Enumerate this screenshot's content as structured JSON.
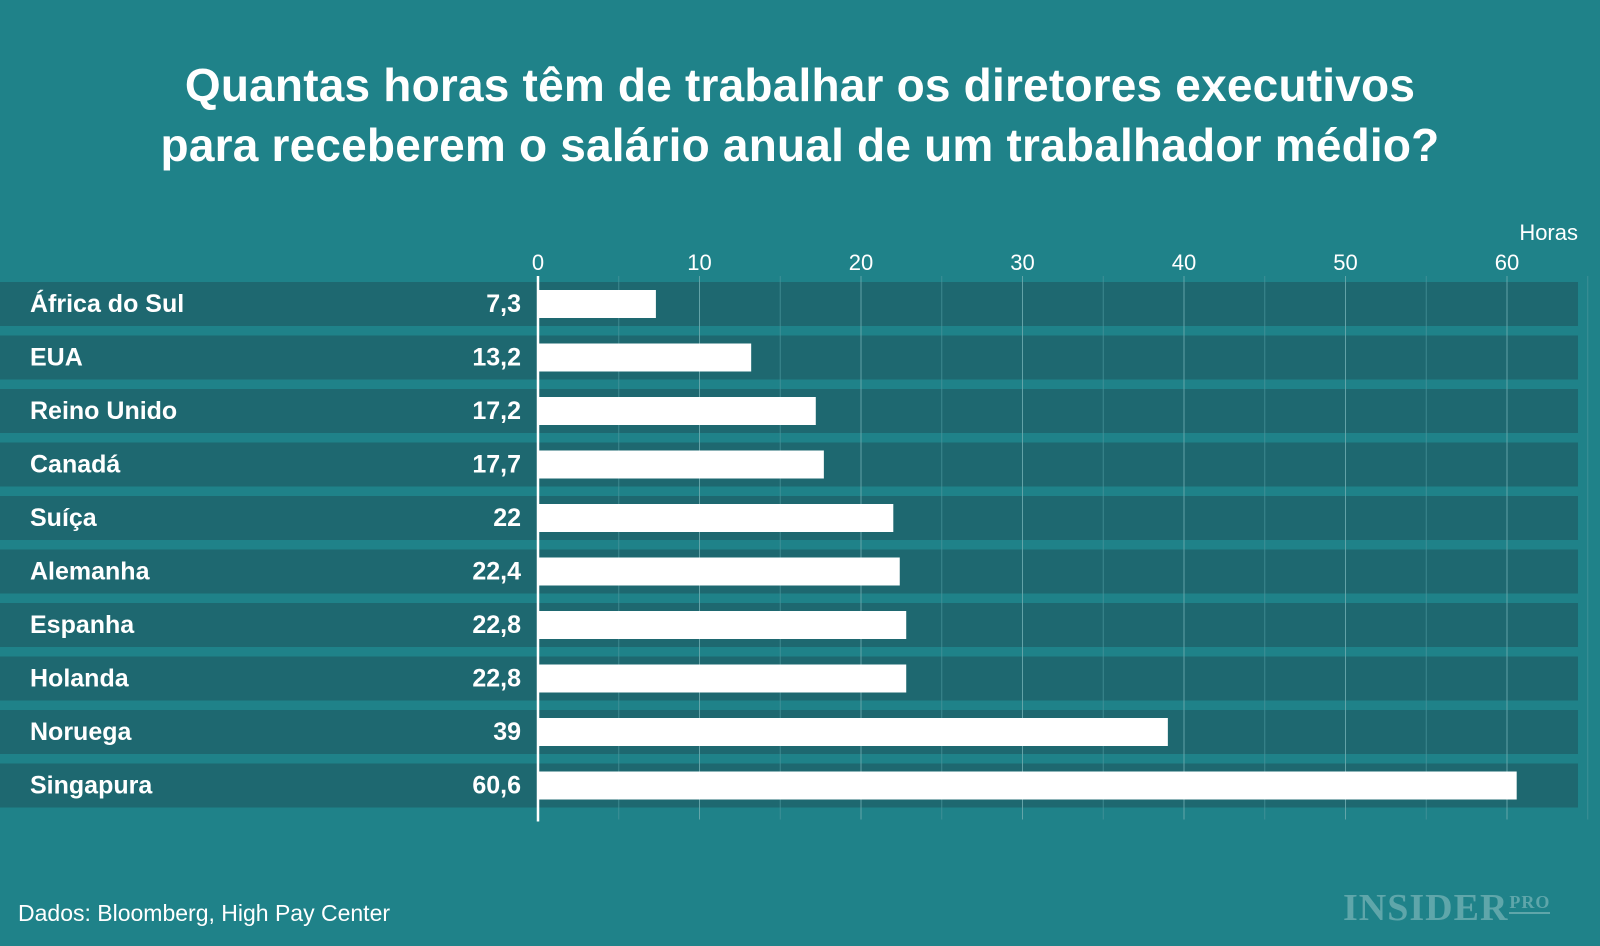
{
  "chart_data": {
    "type": "bar",
    "orientation": "horizontal",
    "title": "Quantas horas têm de trabalhar os diretores executivos para receberem o salário anual de um trabalhador médio?",
    "title_lines": [
      "Quantas horas têm de trabalhar os diretores executivos",
      "para receberem o salário anual de um trabalhador médio?"
    ],
    "xlabel": "Horas",
    "ylabel": "",
    "xlim": [
      0,
      65
    ],
    "ticks": [
      0,
      10,
      20,
      30,
      40,
      50,
      60
    ],
    "categories": [
      "África do Sul",
      "EUA",
      "Reino Unido",
      "Canadá",
      "Suíça",
      "Alemanha",
      "Espanha",
      "Holanda",
      "Noruega",
      "Singapura"
    ],
    "values": [
      7.3,
      13.2,
      17.2,
      17.7,
      22,
      22.4,
      22.8,
      22.8,
      39,
      60.6
    ],
    "value_labels": [
      "7,3",
      "13,2",
      "17,2",
      "17,7",
      "22",
      "22,4",
      "22,8",
      "22,8",
      "39",
      "60,6"
    ],
    "grid": true,
    "colors": {
      "background": "#1f8289",
      "row_band": "#1e6870",
      "bar": "#ffffff",
      "text": "#ffffff",
      "grid": "#4a969c"
    }
  },
  "source": "Dados: Bloomberg, High Pay Center",
  "logo": {
    "main": "INSIDER",
    "sub": "PRO"
  }
}
